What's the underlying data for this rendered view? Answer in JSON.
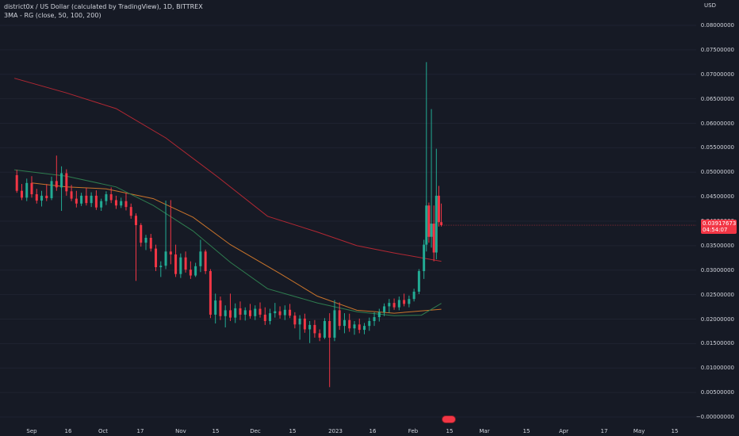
{
  "legend": {
    "symbol_line": "district0x / US Dollar (calculated by TradingView), 1D, BITTREX",
    "indicator_line": "3MA - RG (close, 50, 100, 200)"
  },
  "axis": {
    "currency": "USD",
    "y_ticks": [
      "0.08000000",
      "0.07500000",
      "0.07000000",
      "0.06500000",
      "0.06000000",
      "0.05500000",
      "0.05000000",
      "0.04500000",
      "0.04000000",
      "0.03500000",
      "0.03000000",
      "0.02500000",
      "0.02000000",
      "0.01500000",
      "0.01000000",
      "0.00500000",
      "−0.00000000"
    ],
    "x_ticks": [
      "Sep",
      "16",
      "Oct",
      "17",
      "Nov",
      "15",
      "Dec",
      "15",
      "2023",
      "16",
      "Feb",
      "15",
      "Mar",
      "15",
      "Apr",
      "17",
      "May",
      "15"
    ]
  },
  "price_tag": {
    "price": "0.03917673",
    "countdown": "04:54:07"
  },
  "colors": {
    "bg": "#161a25",
    "up": "#22ab94",
    "down": "#f23645",
    "ma50": "#2e7d4f",
    "ma100": "#c9742b",
    "ma200": "#b22833",
    "text": "#d1d4dc"
  },
  "chart_data": {
    "type": "candlestick",
    "ylim": [
      -0.001,
      0.083
    ],
    "x_range": [
      "2022-08-25",
      "2023-05-20"
    ],
    "candles": [
      [
        "2022-08-26",
        0.0494,
        0.0505,
        0.0458,
        0.0462
      ],
      [
        "2022-08-28",
        0.0462,
        0.0476,
        0.0443,
        0.0448
      ],
      [
        "2022-08-30",
        0.0448,
        0.0487,
        0.0441,
        0.0478
      ],
      [
        "2022-09-01",
        0.0478,
        0.0492,
        0.0448,
        0.0455
      ],
      [
        "2022-09-03",
        0.0455,
        0.0466,
        0.0436,
        0.0442
      ],
      [
        "2022-09-05",
        0.0442,
        0.0462,
        0.043,
        0.0452
      ],
      [
        "2022-09-07",
        0.0452,
        0.0476,
        0.0441,
        0.0447
      ],
      [
        "2022-09-09",
        0.0447,
        0.0491,
        0.0443,
        0.0482
      ],
      [
        "2022-09-11",
        0.0482,
        0.0534,
        0.0462,
        0.0469
      ],
      [
        "2022-09-13",
        0.0469,
        0.0512,
        0.0421,
        0.0498
      ],
      [
        "2022-09-15",
        0.0498,
        0.0506,
        0.0452,
        0.0461
      ],
      [
        "2022-09-17",
        0.0461,
        0.0474,
        0.0441,
        0.0446
      ],
      [
        "2022-09-19",
        0.0446,
        0.0462,
        0.0428,
        0.0436
      ],
      [
        "2022-09-21",
        0.0436,
        0.0458,
        0.0431,
        0.0452
      ],
      [
        "2022-09-23",
        0.0452,
        0.0468,
        0.0432,
        0.0437
      ],
      [
        "2022-09-25",
        0.0437,
        0.0459,
        0.0429,
        0.0452
      ],
      [
        "2022-09-27",
        0.0452,
        0.0463,
        0.0423,
        0.0428
      ],
      [
        "2022-09-29",
        0.0428,
        0.0446,
        0.0421,
        0.0441
      ],
      [
        "2022-10-01",
        0.0441,
        0.0461,
        0.0433,
        0.0455
      ],
      [
        "2022-10-03",
        0.0455,
        0.0469,
        0.0437,
        0.0443
      ],
      [
        "2022-10-05",
        0.0443,
        0.0452,
        0.0425,
        0.0432
      ],
      [
        "2022-10-07",
        0.0432,
        0.0448,
        0.0427,
        0.0441
      ],
      [
        "2022-10-09",
        0.0441,
        0.0458,
        0.0422,
        0.0429
      ],
      [
        "2022-10-11",
        0.0429,
        0.0436,
        0.0405,
        0.0411
      ],
      [
        "2022-10-13",
        0.0411,
        0.0416,
        0.0278,
        0.0392
      ],
      [
        "2022-10-15",
        0.0392,
        0.0396,
        0.0348,
        0.0356
      ],
      [
        "2022-10-17",
        0.0356,
        0.0372,
        0.0341,
        0.0366
      ],
      [
        "2022-10-19",
        0.0366,
        0.0374,
        0.0338,
        0.0344
      ],
      [
        "2022-10-21",
        0.0344,
        0.0352,
        0.0298,
        0.0306
      ],
      [
        "2022-10-23",
        0.0306,
        0.0318,
        0.0286,
        0.0309
      ],
      [
        "2022-10-25",
        0.0309,
        0.0442,
        0.0302,
        0.0338
      ],
      [
        "2022-10-27",
        0.0338,
        0.0443,
        0.0312,
        0.0332
      ],
      [
        "2022-10-29",
        0.0332,
        0.0352,
        0.0286,
        0.0292
      ],
      [
        "2022-10-31",
        0.0292,
        0.0334,
        0.0284,
        0.0326
      ],
      [
        "2022-11-02",
        0.0326,
        0.0338,
        0.0295,
        0.0301
      ],
      [
        "2022-11-04",
        0.0301,
        0.0318,
        0.0282,
        0.0289
      ],
      [
        "2022-11-06",
        0.0289,
        0.0315,
        0.0286,
        0.0308
      ],
      [
        "2022-11-08",
        0.0308,
        0.0362,
        0.0296,
        0.0338
      ],
      [
        "2022-11-10",
        0.0338,
        0.0342,
        0.0292,
        0.0298
      ],
      [
        "2022-11-12",
        0.0298,
        0.0302,
        0.0202,
        0.0209
      ],
      [
        "2022-11-14",
        0.0209,
        0.0252,
        0.0191,
        0.0238
      ],
      [
        "2022-11-16",
        0.0238,
        0.0246,
        0.0198,
        0.0206
      ],
      [
        "2022-11-18",
        0.0206,
        0.0228,
        0.0183,
        0.0218
      ],
      [
        "2022-11-20",
        0.0218,
        0.0252,
        0.0196,
        0.0203
      ],
      [
        "2022-11-22",
        0.0203,
        0.0232,
        0.0192,
        0.0222
      ],
      [
        "2022-11-24",
        0.0222,
        0.0236,
        0.0198,
        0.0209
      ],
      [
        "2022-11-26",
        0.0209,
        0.0224,
        0.0197,
        0.0218
      ],
      [
        "2022-11-28",
        0.0218,
        0.0231,
        0.0201,
        0.0206
      ],
      [
        "2022-11-30",
        0.0206,
        0.0228,
        0.0198,
        0.0221
      ],
      [
        "2022-12-02",
        0.0221,
        0.0234,
        0.0203,
        0.0209
      ],
      [
        "2022-12-04",
        0.0209,
        0.0224,
        0.0188,
        0.0196
      ],
      [
        "2022-12-06",
        0.0196,
        0.0221,
        0.0189,
        0.0212
      ],
      [
        "2022-12-08",
        0.0212,
        0.0233,
        0.0203,
        0.0216
      ],
      [
        "2022-12-10",
        0.0216,
        0.0226,
        0.0201,
        0.0208
      ],
      [
        "2022-12-12",
        0.0208,
        0.0228,
        0.0198,
        0.0219
      ],
      [
        "2022-12-14",
        0.0219,
        0.0231,
        0.0202,
        0.0207
      ],
      [
        "2022-12-16",
        0.0207,
        0.0214,
        0.0181,
        0.0189
      ],
      [
        "2022-12-18",
        0.0189,
        0.0208,
        0.0158,
        0.0201
      ],
      [
        "2022-12-20",
        0.0201,
        0.0211,
        0.0172,
        0.0179
      ],
      [
        "2022-12-22",
        0.0179,
        0.0196,
        0.0151,
        0.0188
      ],
      [
        "2022-12-24",
        0.0188,
        0.0198,
        0.0162,
        0.0171
      ],
      [
        "2022-12-26",
        0.0171,
        0.0179,
        0.0155,
        0.0162
      ],
      [
        "2022-12-28",
        0.0162,
        0.0202,
        0.0159,
        0.0196
      ],
      [
        "2022-12-30",
        0.0196,
        0.0212,
        0.0061,
        0.0162
      ],
      [
        "2023-01-01",
        0.0162,
        0.0239,
        0.0155,
        0.0218
      ],
      [
        "2023-01-03",
        0.0218,
        0.0234,
        0.0178,
        0.0186
      ],
      [
        "2023-01-05",
        0.0186,
        0.0212,
        0.0171,
        0.0198
      ],
      [
        "2023-01-07",
        0.0198,
        0.0211,
        0.0174,
        0.0181
      ],
      [
        "2023-01-09",
        0.0181,
        0.0196,
        0.0168,
        0.0189
      ],
      [
        "2023-01-11",
        0.0189,
        0.0201,
        0.0171,
        0.0178
      ],
      [
        "2023-01-13",
        0.0178,
        0.0192,
        0.0169,
        0.0186
      ],
      [
        "2023-01-15",
        0.0186,
        0.0203,
        0.0176,
        0.0196
      ],
      [
        "2023-01-17",
        0.0196,
        0.0214,
        0.0186,
        0.0204
      ],
      [
        "2023-01-19",
        0.0204,
        0.0221,
        0.0195,
        0.0214
      ],
      [
        "2023-01-21",
        0.0214,
        0.0232,
        0.0206,
        0.0226
      ],
      [
        "2023-01-23",
        0.0226,
        0.0241,
        0.0213,
        0.0233
      ],
      [
        "2023-01-25",
        0.0233,
        0.0242,
        0.0219,
        0.0224
      ],
      [
        "2023-01-27",
        0.0224,
        0.0246,
        0.0218,
        0.0239
      ],
      [
        "2023-01-29",
        0.0239,
        0.0252,
        0.0226,
        0.0231
      ],
      [
        "2023-01-31",
        0.0231,
        0.0248,
        0.0224,
        0.0241
      ],
      [
        "2023-02-02",
        0.0241,
        0.0262,
        0.0236,
        0.0256
      ],
      [
        "2023-02-04",
        0.0256,
        0.0302,
        0.0251,
        0.0298
      ],
      [
        "2023-02-06",
        0.0298,
        0.0362,
        0.0282,
        0.0352
      ],
      [
        "2023-02-07",
        0.0352,
        0.0725,
        0.0338,
        0.0432
      ],
      [
        "2023-02-08",
        0.0432,
        0.0438,
        0.0356,
        0.0368
      ],
      [
        "2023-02-09",
        0.0368,
        0.0629,
        0.0346,
        0.0395
      ],
      [
        "2023-02-10",
        0.0395,
        0.0432,
        0.0318,
        0.0336
      ],
      [
        "2023-02-11",
        0.0336,
        0.0548,
        0.0322,
        0.0452
      ],
      [
        "2023-02-12",
        0.0452,
        0.0472,
        0.0389,
        0.0398
      ],
      [
        "2023-02-13",
        0.0398,
        0.0436,
        0.0389,
        0.0392
      ]
    ],
    "ma50": [
      [
        "2022-08-25",
        0.0505
      ],
      [
        "2022-09-15",
        0.0492
      ],
      [
        "2022-10-05",
        0.047
      ],
      [
        "2022-10-20",
        0.0432
      ],
      [
        "2022-11-05",
        0.038
      ],
      [
        "2022-11-20",
        0.0316
      ],
      [
        "2022-12-05",
        0.0262
      ],
      [
        "2022-12-25",
        0.0233
      ],
      [
        "2023-01-10",
        0.0215
      ],
      [
        "2023-01-25",
        0.0207
      ],
      [
        "2023-02-05",
        0.0208
      ],
      [
        "2023-02-13",
        0.0232
      ]
    ],
    "ma100": [
      [
        "2022-09-01",
        0.0478
      ],
      [
        "2022-09-15",
        0.047
      ],
      [
        "2022-10-01",
        0.0466
      ],
      [
        "2022-10-20",
        0.0446
      ],
      [
        "2022-11-05",
        0.0408
      ],
      [
        "2022-11-20",
        0.0352
      ],
      [
        "2022-12-10",
        0.0293
      ],
      [
        "2022-12-25",
        0.0247
      ],
      [
        "2023-01-10",
        0.0218
      ],
      [
        "2023-01-25",
        0.0212
      ],
      [
        "2023-02-13",
        0.022
      ]
    ],
    "ma200": [
      [
        "2022-08-25",
        0.0692
      ],
      [
        "2022-09-15",
        0.0662
      ],
      [
        "2022-10-05",
        0.063
      ],
      [
        "2022-10-25",
        0.057
      ],
      [
        "2022-11-15",
        0.049
      ],
      [
        "2022-12-05",
        0.041
      ],
      [
        "2022-12-25",
        0.0378
      ],
      [
        "2023-01-10",
        0.035
      ],
      [
        "2023-01-25",
        0.0335
      ],
      [
        "2023-02-13",
        0.0318
      ]
    ]
  }
}
